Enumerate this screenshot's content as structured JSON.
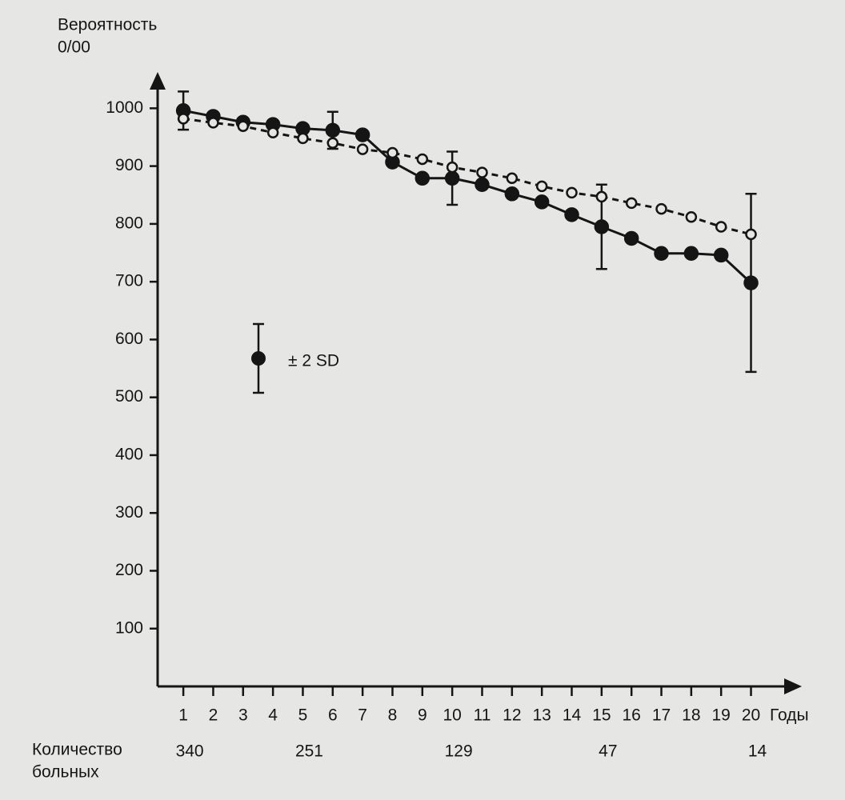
{
  "chart_data": {
    "type": "line",
    "y_label": [
      "Вероятность",
      "0/00"
    ],
    "x_label": "Годы",
    "x": [
      1,
      2,
      3,
      4,
      5,
      6,
      7,
      8,
      9,
      10,
      11,
      12,
      13,
      14,
      15,
      16,
      17,
      18,
      19,
      20
    ],
    "xlim": [
      0.14,
      21.7
    ],
    "xticks": [
      1,
      2,
      3,
      4,
      5,
      6,
      7,
      8,
      9,
      10,
      11,
      12,
      13,
      14,
      15,
      16,
      17,
      18,
      19,
      20
    ],
    "ylim": [
      0,
      1060
    ],
    "yticks": [
      100,
      200,
      300,
      400,
      500,
      600,
      700,
      800,
      900,
      1000
    ],
    "series": [
      {
        "color": "#151515",
        "line_style": "solid",
        "marker": "filled",
        "values": [
          996,
          986,
          976,
          972,
          965,
          962,
          954,
          907,
          879,
          879,
          868,
          852,
          838,
          816,
          795,
          775,
          749,
          749,
          746,
          698
        ],
        "errors": [
          33,
          null,
          null,
          null,
          null,
          32,
          null,
          null,
          null,
          46,
          null,
          null,
          null,
          null,
          73,
          null,
          null,
          null,
          null,
          154
        ]
      },
      {
        "color": "#151515",
        "line_style": "dashed",
        "marker": "open",
        "values": [
          982,
          975,
          969,
          958,
          948,
          940,
          929,
          923,
          912,
          898,
          889,
          879,
          865,
          854,
          847,
          836,
          826,
          812,
          795,
          782
        ]
      }
    ],
    "error_label": "± 2 SD",
    "patients_label": [
      "Количество",
      "больных"
    ],
    "patients": {
      "x": [
        1,
        5,
        10,
        15,
        20
      ],
      "values": [
        340,
        251,
        129,
        47,
        14
      ]
    }
  }
}
